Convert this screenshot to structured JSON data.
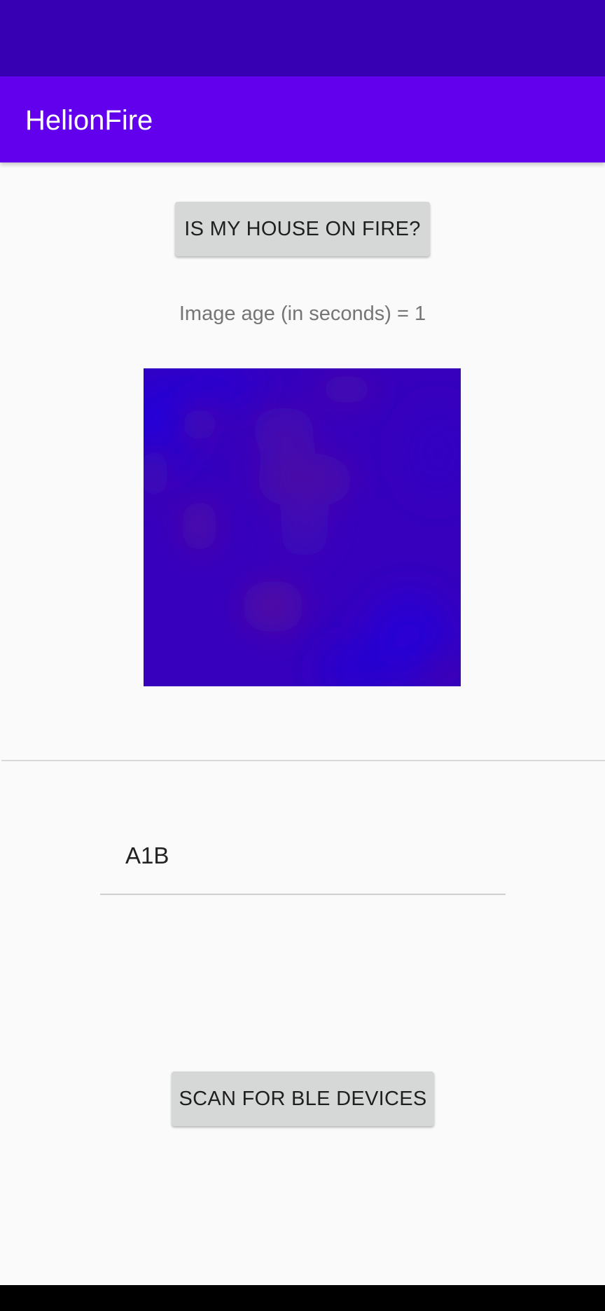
{
  "app": {
    "title": "HelionFire"
  },
  "main": {
    "fire_button_label": "IS MY HOUSE ON FIRE?",
    "image_age_text": "Image age (in seconds) = 1",
    "device_name_value": "A1B",
    "scan_button_label": "SCAN FOR BLE DEVICES"
  },
  "colors": {
    "status_bar": "#3700b3",
    "app_bar": "#6200ee",
    "thermal_cold": "#2200d8",
    "thermal_base": "#3a00bb",
    "thermal_warm": "#5a0aa0"
  }
}
